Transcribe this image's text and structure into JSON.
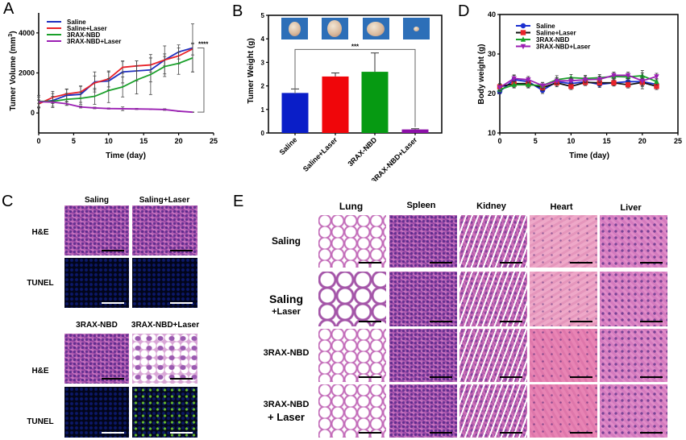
{
  "panels": {
    "A": {
      "letter": "A"
    },
    "B": {
      "letter": "B"
    },
    "C": {
      "letter": "C"
    },
    "D": {
      "letter": "D"
    },
    "E": {
      "letter": "E"
    }
  },
  "chart_data": [
    {
      "id": "A",
      "type": "line",
      "title": "",
      "xlabel": "Time (day)",
      "ylabel": "Tumer Volume (mm³)",
      "ylabel_main": "Tumer Volume (mm",
      "ylabel_sup": "3",
      "ylabel_end": ")",
      "xlim": [
        0,
        25
      ],
      "ylim": [
        -1000,
        5000
      ],
      "xticks": [
        0,
        5,
        10,
        15,
        20,
        25
      ],
      "yticks": [
        0,
        2000,
        4000
      ],
      "grid": false,
      "legend": "top-left",
      "x": [
        0,
        2,
        4,
        6,
        8,
        10,
        12,
        14,
        16,
        18,
        20,
        22
      ],
      "series": [
        {
          "name": "Saline",
          "color": "#1f2fbf",
          "values": [
            550,
            620,
            880,
            930,
            1550,
            1600,
            2050,
            2100,
            2150,
            2650,
            3050,
            3250
          ],
          "errors": [
            250,
            350,
            300,
            400,
            500,
            450,
            550,
            500,
            600,
            700,
            350,
            1200
          ]
        },
        {
          "name": "Saline+Laser",
          "color": "#e8232a",
          "values": [
            450,
            780,
            950,
            1050,
            1500,
            1700,
            2280,
            2350,
            2400,
            2650,
            2850,
            3200
          ],
          "errors": [
            200,
            300,
            250,
            300,
            350,
            400,
            300,
            250,
            350,
            300,
            400,
            300
          ]
        },
        {
          "name": "3RAX-NBD",
          "color": "#1aa02a",
          "values": [
            580,
            580,
            680,
            730,
            830,
            1120,
            1300,
            1650,
            1920,
            2320,
            2480,
            2750
          ],
          "errors": [
            300,
            250,
            300,
            300,
            400,
            600,
            500,
            700,
            1000,
            500,
            550,
            700
          ]
        },
        {
          "name": "3RAX-NBD+Laser",
          "color": "#9b1fb3",
          "values": [
            560,
            540,
            460,
            300,
            250,
            220,
            210,
            200,
            190,
            170,
            90,
            40
          ],
          "errors": [
            80,
            60,
            80,
            50,
            40,
            30,
            90,
            30,
            20,
            40,
            20,
            10
          ]
        }
      ],
      "annotations": [
        {
          "text": "****",
          "between": [
            "Saline",
            "3RAX-NBD+Laser"
          ],
          "at_x": 22
        }
      ]
    },
    {
      "id": "B",
      "type": "bar",
      "title": "",
      "xlabel": "",
      "ylabel": "Tumer Weight (g)",
      "ylim": [
        0,
        5
      ],
      "yticks": [
        0,
        1,
        2,
        3,
        4,
        5
      ],
      "categories": [
        "Saline",
        "Saline+Laser",
        "3RAX-NBD",
        "3RAX-NBD+Laser"
      ],
      "values": [
        1.7,
        2.4,
        2.6,
        0.15
      ],
      "errors": [
        0.17,
        0.15,
        0.8,
        0.03
      ],
      "colors": [
        "#0a1ec8",
        "#f0060a",
        "#069a12",
        "#8c0fa8"
      ],
      "annotations": [
        {
          "text": "***",
          "between": [
            "Saline",
            "3RAX-NBD+Laser"
          ],
          "at_y": 3.55
        }
      ],
      "inset_images": [
        "tumor-photo-saline",
        "tumor-photo-saline-laser",
        "tumor-photo-3rax-nbd",
        "tumor-photo-3rax-nbd-laser"
      ]
    },
    {
      "id": "D",
      "type": "line",
      "title": "",
      "xlabel": "Time (day)",
      "ylabel": "Body weight (g)",
      "xlim": [
        0,
        25
      ],
      "ylim": [
        10,
        40
      ],
      "xticks": [
        0,
        5,
        10,
        15,
        20,
        25
      ],
      "yticks": [
        10,
        20,
        30,
        40
      ],
      "grid": false,
      "legend": "top-left",
      "x": [
        0,
        2,
        4,
        6,
        8,
        10,
        12,
        14,
        16,
        18,
        20,
        22
      ],
      "series": [
        {
          "name": "Saline",
          "color": "#1b2fd0",
          "marker": "circle",
          "values": [
            20.5,
            23.5,
            23.0,
            20.8,
            23.0,
            22.5,
            23.0,
            22.3,
            22.7,
            23.0,
            23.0,
            22.3
          ],
          "errors": [
            0.6,
            1.2,
            1.0,
            0.8,
            1.0,
            0.8,
            0.8,
            0.8,
            0.8,
            0.8,
            1.0,
            0.8
          ]
        },
        {
          "name": "Saline+Laser",
          "color": "#e8232a",
          "marker": "square",
          "line_color": "#111111",
          "values": [
            21.7,
            22.5,
            22.5,
            21.5,
            22.7,
            21.8,
            22.8,
            22.7,
            22.7,
            22.2,
            22.8,
            21.8
          ],
          "errors": [
            0.8,
            1.0,
            1.0,
            0.8,
            1.0,
            0.8,
            0.8,
            0.8,
            0.8,
            0.8,
            1.0,
            0.8
          ]
        },
        {
          "name": "3RAX-NBD",
          "color": "#1aa02a",
          "marker": "triangle-up",
          "values": [
            21.0,
            22.2,
            22.2,
            22.0,
            23.5,
            24.0,
            23.8,
            24.0,
            24.3,
            24.2,
            24.5,
            23.0
          ],
          "errors": [
            0.8,
            0.8,
            0.8,
            0.8,
            1.0,
            0.8,
            0.8,
            0.8,
            0.8,
            0.8,
            1.3,
            0.8
          ]
        },
        {
          "name": "3RAX-NBD+Laser",
          "color": "#9b1fb3",
          "marker": "triangle-down",
          "values": [
            21.5,
            23.8,
            23.5,
            22.0,
            23.2,
            23.2,
            23.5,
            23.6,
            24.6,
            24.6,
            23.2,
            24.3
          ],
          "errors": [
            0.8,
            0.8,
            0.8,
            0.8,
            0.8,
            0.8,
            0.8,
            0.8,
            0.8,
            0.8,
            2.0,
            0.8
          ]
        }
      ]
    }
  ],
  "panelC": {
    "columns_top": [
      "Saling",
      "Saling+Laser"
    ],
    "columns_bottom": [
      "3RAX-NBD",
      "3RAX-NBD+Laser"
    ],
    "rows": [
      "H&E",
      "TUNEL"
    ]
  },
  "panelE": {
    "columns": [
      "Lung",
      "Spleen",
      "Kidney",
      "Heart",
      "Liver"
    ],
    "rows": [
      {
        "line1": "Saling",
        "line2": ""
      },
      {
        "line1": "Saling",
        "line2": "+Laser"
      },
      {
        "line1": "3RAX-NBD",
        "line2": ""
      },
      {
        "line1": "3RAX-NBD",
        "line2": "+ Laser"
      }
    ]
  }
}
